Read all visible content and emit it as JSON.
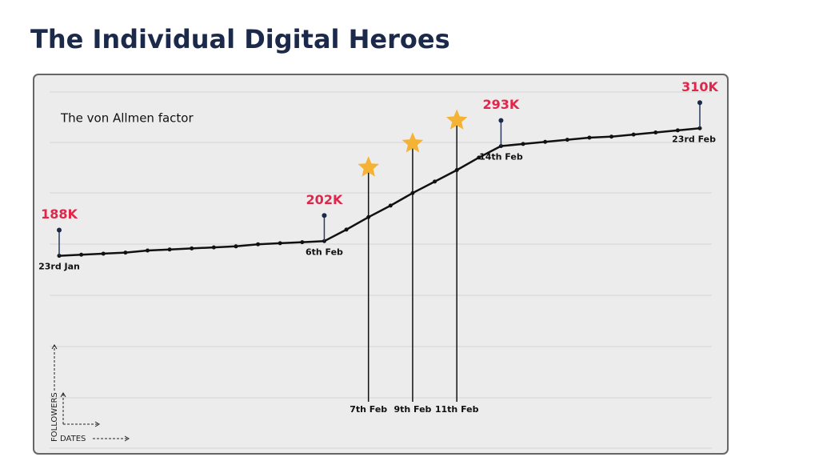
{
  "header": {
    "title": "The Individual Digital Heroes"
  },
  "chart_data": {
    "type": "line",
    "title": "The von Allmen factor",
    "x_label": "DATES",
    "y_label": "FOLLOWERS",
    "categories": [
      "23rd Jan",
      null,
      null,
      null,
      null,
      null,
      null,
      null,
      null,
      null,
      null,
      null,
      "6th Feb",
      null,
      "7th Feb",
      null,
      "9th Feb",
      null,
      "11th Feb",
      null,
      "14th Feb",
      null,
      null,
      null,
      null,
      null,
      null,
      null,
      null,
      "23rd Feb"
    ],
    "values": [
      188,
      189,
      190,
      191,
      193,
      194,
      195,
      196,
      197,
      199,
      200,
      201,
      202,
      213,
      225,
      236,
      248,
      259,
      270,
      282,
      293,
      295,
      297,
      299,
      301,
      302,
      304,
      306,
      308,
      310
    ],
    "value_labels": [
      "188K",
      null,
      null,
      null,
      null,
      null,
      null,
      null,
      null,
      null,
      null,
      null,
      "202K",
      null,
      null,
      null,
      null,
      null,
      null,
      null,
      "293K",
      null,
      null,
      null,
      null,
      null,
      null,
      null,
      null,
      "310K"
    ],
    "color": "#111111",
    "label_color": "#e0264a",
    "star_color": "#f5b335",
    "ylim": [
      0,
      360
    ]
  }
}
